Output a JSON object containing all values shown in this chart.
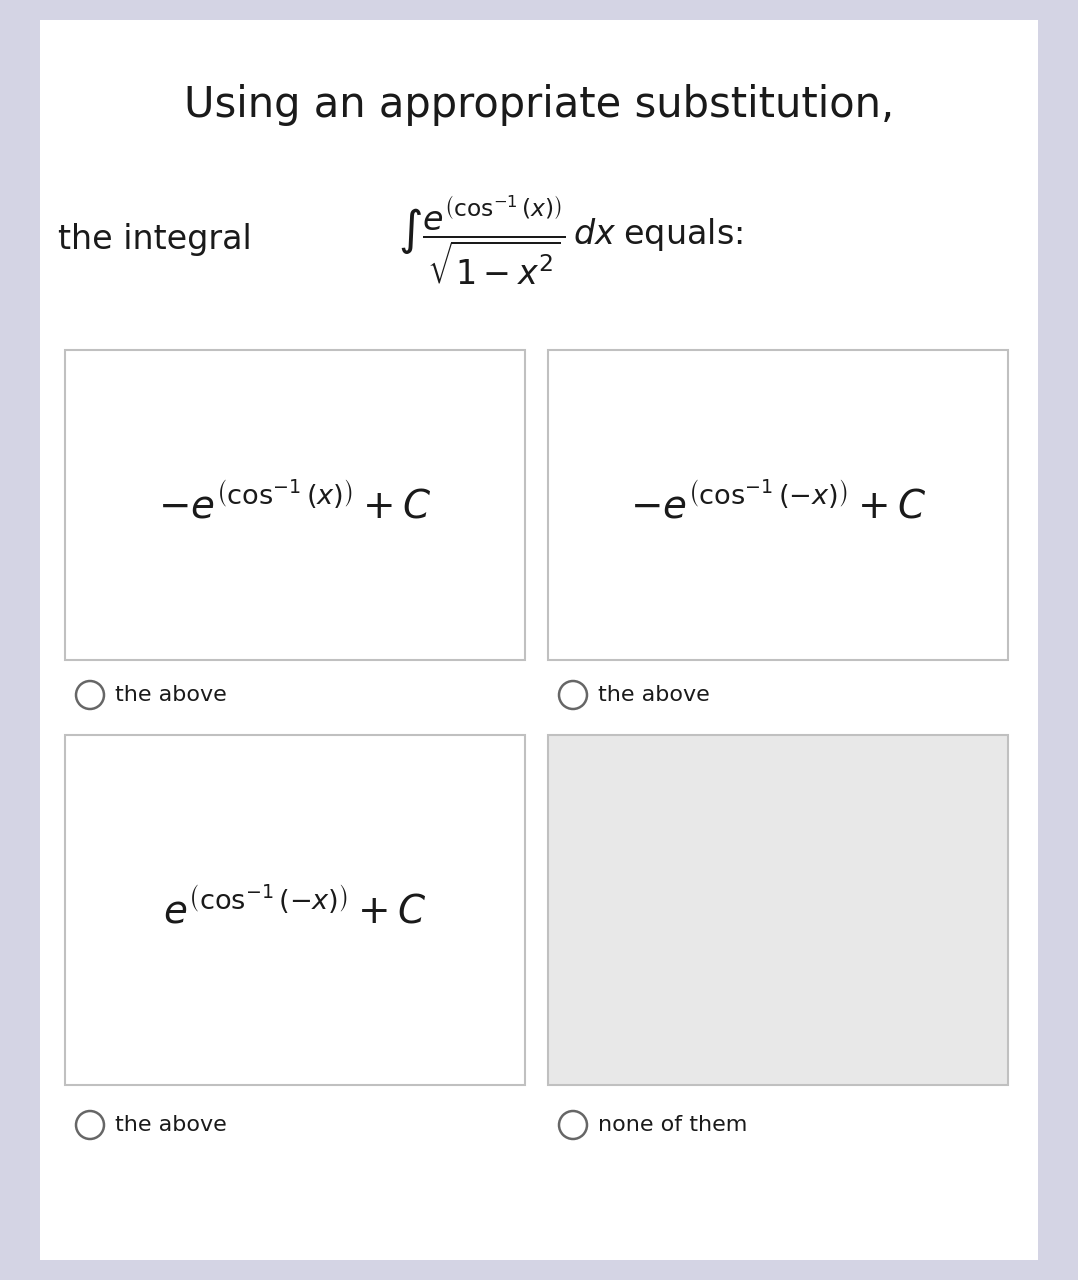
{
  "title": "Using an appropriate substitution,",
  "background_color": "#ffffff",
  "outer_bg_color": "#d4d4e4",
  "box_color_white": "#ffffff",
  "box_color_gray": "#e8e8e8",
  "border_color": "#c0c0c0",
  "text_color": "#1a1a1a",
  "label1": "the above",
  "label2": "the above",
  "label3": "the above",
  "label4": "none of them",
  "title_fontsize": 30,
  "integral_text_fontsize": 24,
  "option_fontsize": 28,
  "label_fontsize": 16
}
